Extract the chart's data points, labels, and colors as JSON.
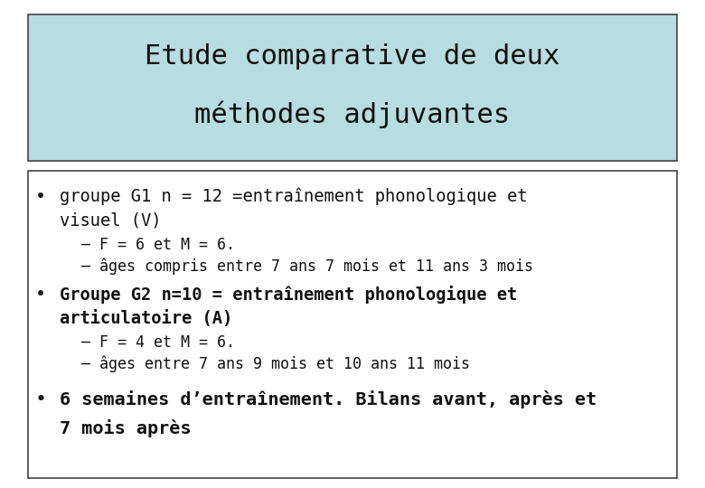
{
  "title_line1": "Etude comparative de deux",
  "title_line2": "méthodes adjuvantes",
  "title_bg_color": "#b8dde0",
  "title_border_color": "#444444",
  "body_bg_color": "#ffffff",
  "body_border_color": "#444444",
  "slide_bg_color": "#ffffff",
  "bullet1_main": "groupe G1 n = 12 =entraînement phonologique et",
  "bullet1_cont": "visuel (V)",
  "bullet1_sub1": "– F = 6 et M = 6.",
  "bullet1_sub2": "– âges compris entre 7 ans 7 mois et 11 ans 3 mois",
  "bullet2_main": "Groupe G2 n=10 = entraînement phonologique et",
  "bullet2_cont": "articulatoire (A)",
  "bullet2_sub1": "– F = 4 et M = 6.",
  "bullet2_sub2": "– âges entre 7 ans 9 mois et 10 ans 11 mois",
  "bullet3_main": "6 semaines d’entraînement. Bilans avant, après et",
  "bullet3_cont": "7 mois après",
  "font_family": "monospace",
  "title_fontsize": 22,
  "bullet_main_fontsize": 13.5,
  "bullet_cont_fontsize": 13.5,
  "sub_fontsize": 12,
  "bullet3_fontsize": 14.5
}
